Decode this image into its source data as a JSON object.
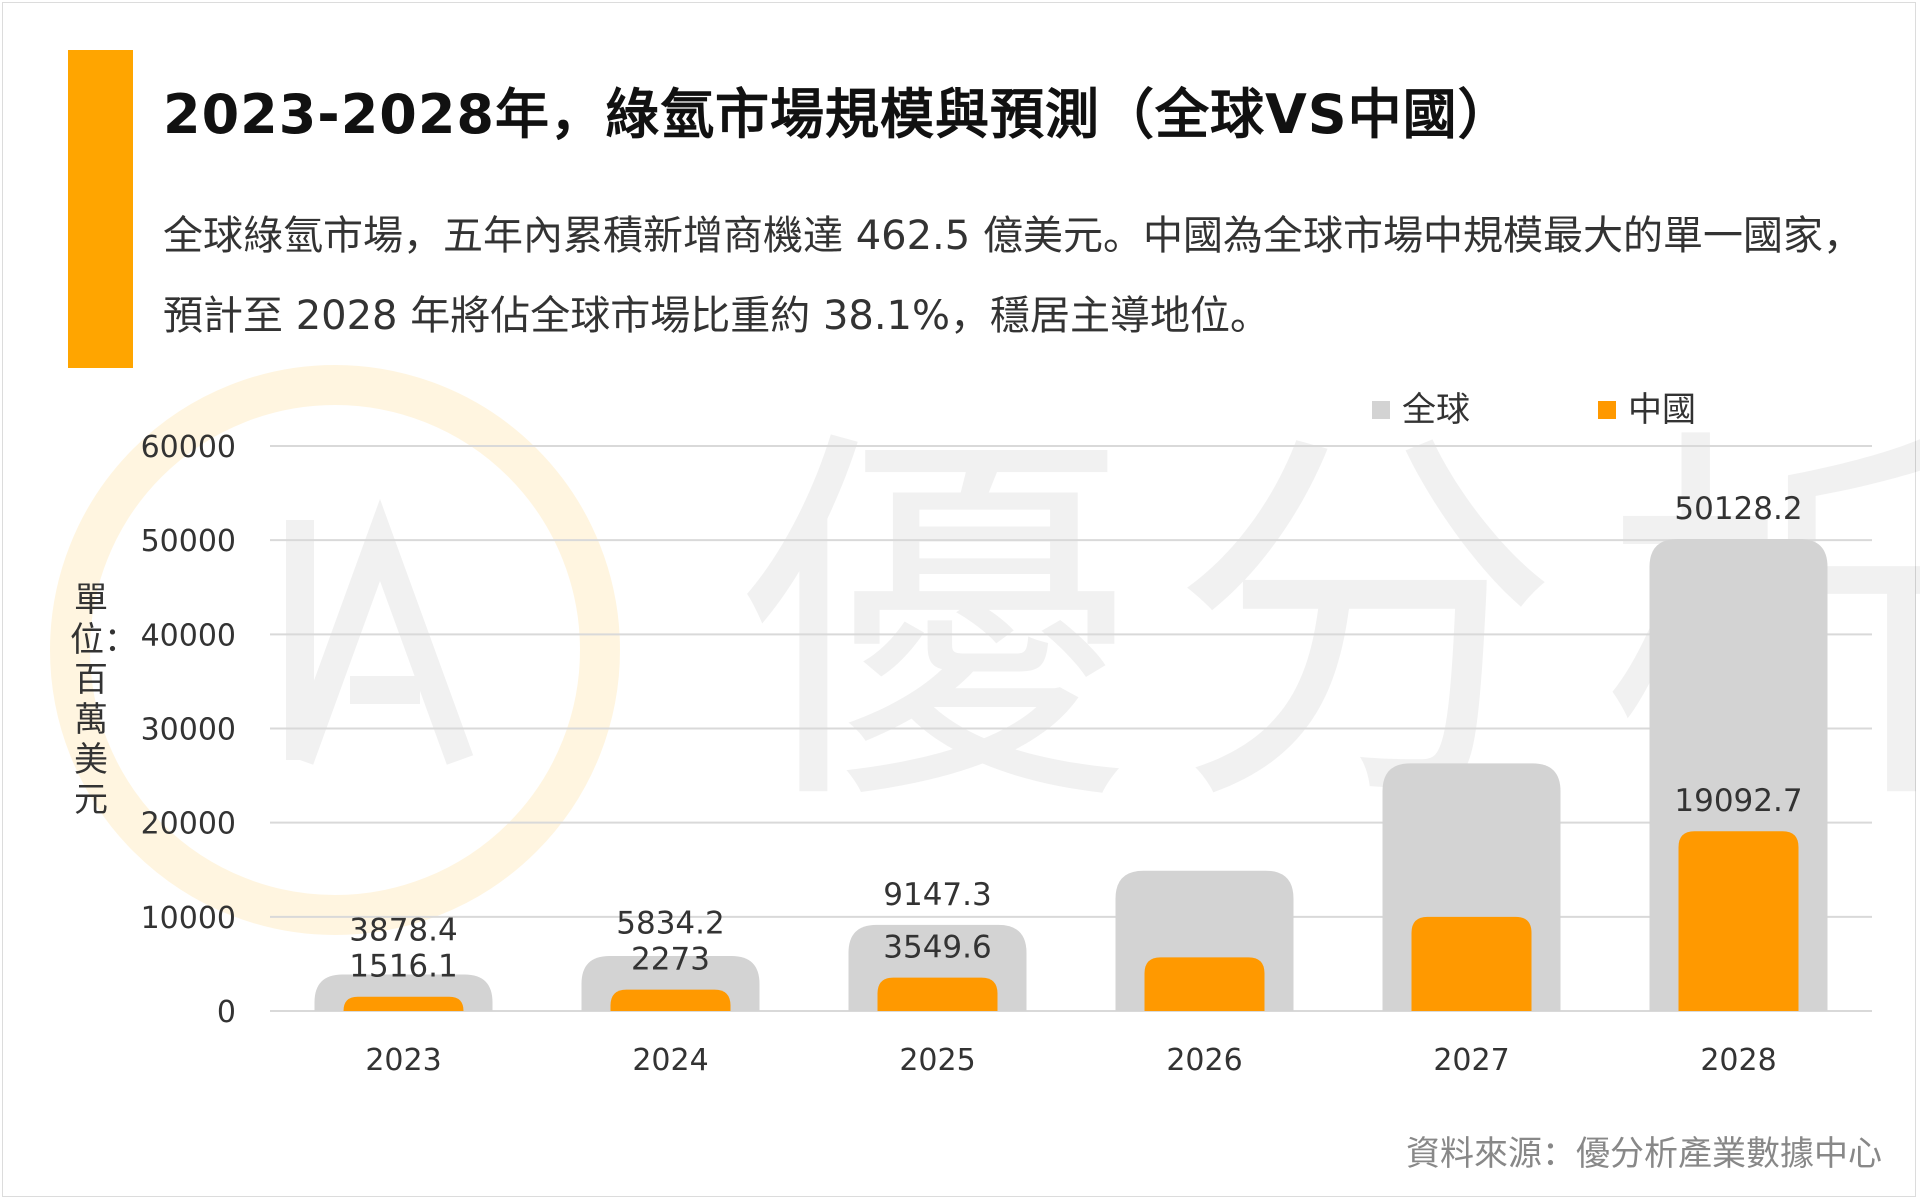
{
  "title": "2023-2028年，綠氫市場規模與預測（全球VS中國）",
  "subtitle": "全球綠氫市場，五年內累積新增商機達 462.5 億美元。中國為全球市場中規模最大的單一國家，預計至 2028 年將佔全球市場比重約 38.1%，穩居主導地位。",
  "source": "資料來源：優分析產業數據中心",
  "watermark": "優分析",
  "colors": {
    "accent": "#FFA500",
    "global": "#D3D3D3",
    "china": "#FF9900",
    "grid": "#D9D9D9"
  },
  "chart_data": {
    "type": "bar",
    "categories": [
      "2023",
      "2024",
      "2025",
      "2026",
      "2027",
      "2028"
    ],
    "series": [
      {
        "name": "全球",
        "values": [
          3878.4,
          5834.2,
          9147.3,
          14900,
          26300,
          50128.2
        ]
      },
      {
        "name": "中國",
        "values": [
          1516.1,
          2273,
          3549.6,
          5700,
          10000,
          19092.7
        ]
      }
    ],
    "data_labels": {
      "全球": [
        "3878.4",
        "5834.2",
        "9147.3",
        "",
        "",
        "50128.2"
      ],
      "中國": [
        "1516.1",
        "2273",
        "3549.6",
        "",
        "",
        "19092.7"
      ]
    },
    "ylabel": "單位：百萬美元",
    "ylim": [
      0,
      60000
    ],
    "yticks": [
      0,
      10000,
      20000,
      30000,
      40000,
      50000,
      60000
    ],
    "grid": true,
    "legend": "top-right",
    "overlap": true
  }
}
